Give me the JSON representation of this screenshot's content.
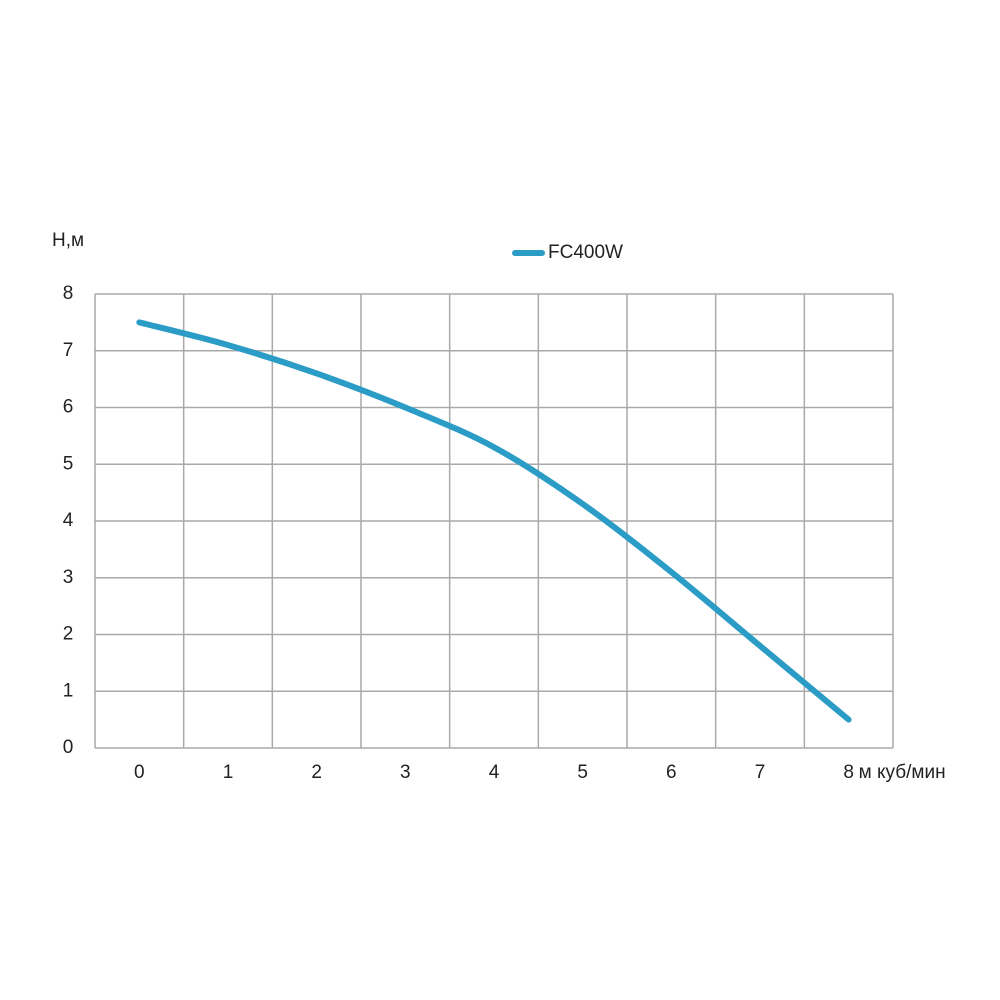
{
  "chart_data": {
    "type": "line",
    "y_label": "H,м",
    "x_label": "м куб/мин",
    "x": [
      0,
      1,
      2,
      3,
      4,
      5,
      6,
      7,
      8
    ],
    "series": [
      {
        "name": "FC400W",
        "color": "#2a9cc6",
        "values": [
          7.5,
          7.1,
          6.6,
          6.0,
          5.3,
          4.3,
          3.1,
          1.8,
          0.5
        ]
      }
    ],
    "xlim": [
      -0.5,
      8.5
    ],
    "xticks": [
      0,
      1,
      2,
      3,
      4,
      5,
      6,
      7,
      8
    ],
    "ylim": [
      0,
      8
    ],
    "yticks": [
      0,
      1,
      2,
      3,
      4,
      5,
      6,
      7,
      8
    ],
    "grid": true,
    "legend": "top"
  }
}
